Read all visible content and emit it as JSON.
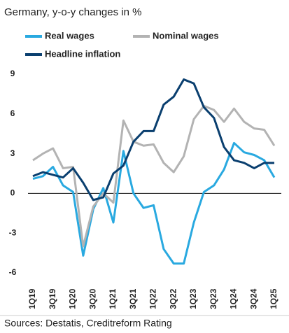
{
  "chart_data": {
    "type": "line",
    "title": "Germany, y-o-y changes in %",
    "source": "Sources: Destatis, Creditreform Rating",
    "categories": [
      "1Q19",
      null,
      "3Q19",
      null,
      "1Q20",
      null,
      "3Q20",
      null,
      "1Q21",
      null,
      "3Q21",
      null,
      "1Q22",
      null,
      "3Q22",
      null,
      "1Q23",
      null,
      "3Q23",
      null,
      "1Q24",
      null,
      "3Q24",
      null,
      "1Q25"
    ],
    "series": [
      {
        "name": "Real wages",
        "color": "#29a9e0",
        "values": [
          1.1,
          1.3,
          2.0,
          0.6,
          0.1,
          -4.7,
          -1.2,
          0.4,
          -2.2,
          3.2,
          0.0,
          -1.1,
          -0.9,
          -4.2,
          -5.3,
          -5.3,
          -2.2,
          0.1,
          0.6,
          1.8,
          3.8,
          3.1,
          2.9,
          2.5,
          1.2
        ]
      },
      {
        "name": "Nominal wages",
        "color": "#b3b3b3",
        "values": [
          2.5,
          3.0,
          3.4,
          1.9,
          2.0,
          -4.0,
          -1.0,
          0.0,
          -0.7,
          5.5,
          3.9,
          3.6,
          3.7,
          2.3,
          1.6,
          2.8,
          5.6,
          6.6,
          6.3,
          5.4,
          6.4,
          5.4,
          4.9,
          4.8,
          3.6
        ]
      },
      {
        "name": "Headline inflation",
        "color": "#0a3f6f",
        "values": [
          1.3,
          1.6,
          1.4,
          1.2,
          1.9,
          0.8,
          -0.5,
          -0.3,
          1.5,
          2.1,
          3.9,
          4.7,
          4.7,
          6.7,
          7.3,
          8.6,
          8.3,
          6.5,
          5.7,
          3.5,
          2.5,
          2.3,
          1.9,
          2.3,
          2.3
        ]
      }
    ],
    "ylim": [
      -6,
      9
    ],
    "yticks": [
      -6,
      -3,
      0,
      3,
      6,
      9
    ]
  }
}
